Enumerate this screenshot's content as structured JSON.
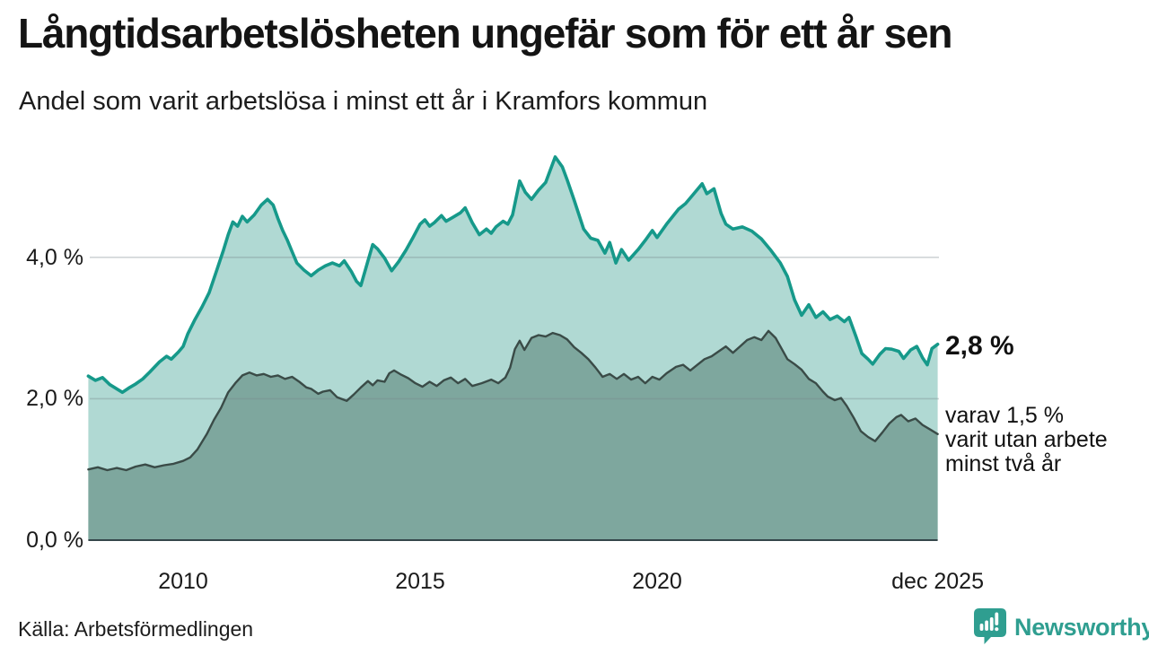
{
  "header": {
    "title": "Långtidsarbetslösheten ungefär som för ett år sen",
    "subtitle": "Andel som varit arbetslösa i minst ett år i Kramfors kommun"
  },
  "annotations": {
    "latest_total": "2,8 %",
    "latest_total_value": 2.8,
    "secondary": [
      "varav 1,5 %",
      "varit utan arbete",
      "minst två år"
    ],
    "secondary_value": 1.5
  },
  "footer": {
    "source": "Källa: Arbetsförmedlingen",
    "brand": "Newsworthy"
  },
  "colors": {
    "series1_line": "#16998a",
    "series1_fill": "#b0d9d3",
    "series2_line": "#3a4b47",
    "series2_fill": "#7ea79e",
    "gridline": "rgba(120,135,138,0.35)",
    "axis_baseline": "#35464a",
    "brand_teal": "#2f9e90",
    "text": "#1a1a1a"
  },
  "chart_data": {
    "type": "area",
    "title": "Långtidsarbetslösheten ungefär som för ett år sen",
    "subtitle": "Andel som varit arbetslösa i minst ett år i Kramfors kommun",
    "unit": "%",
    "x_domain": [
      2008.0,
      2025.92
    ],
    "ylim": [
      0,
      5.6
    ],
    "grid": true,
    "x_ticks": [
      {
        "value": 2010,
        "label": "2010"
      },
      {
        "value": 2015,
        "label": "2015"
      },
      {
        "value": 2020,
        "label": "2020"
      },
      {
        "value": 2025.92,
        "label": "dec 2025"
      }
    ],
    "y_ticks": [
      {
        "value": 0,
        "label": "0,0 %"
      },
      {
        "value": 2,
        "label": "2,0 %"
      },
      {
        "value": 4,
        "label": "4,0 %"
      }
    ],
    "series": [
      {
        "name": "Andel arbetslösa minst ett år",
        "latest_label": "2,8 %",
        "points": [
          [
            2008.0,
            2.32
          ],
          [
            2008.15,
            2.26
          ],
          [
            2008.3,
            2.3
          ],
          [
            2008.45,
            2.2
          ],
          [
            2008.6,
            2.14
          ],
          [
            2008.72,
            2.09
          ],
          [
            2008.85,
            2.15
          ],
          [
            2009.0,
            2.21
          ],
          [
            2009.15,
            2.28
          ],
          [
            2009.3,
            2.38
          ],
          [
            2009.5,
            2.52
          ],
          [
            2009.65,
            2.6
          ],
          [
            2009.75,
            2.56
          ],
          [
            2009.9,
            2.66
          ],
          [
            2010.0,
            2.74
          ],
          [
            2010.1,
            2.92
          ],
          [
            2010.25,
            3.12
          ],
          [
            2010.4,
            3.3
          ],
          [
            2010.55,
            3.5
          ],
          [
            2010.7,
            3.8
          ],
          [
            2010.85,
            4.1
          ],
          [
            2010.95,
            4.32
          ],
          [
            2011.05,
            4.5
          ],
          [
            2011.15,
            4.44
          ],
          [
            2011.25,
            4.58
          ],
          [
            2011.35,
            4.5
          ],
          [
            2011.5,
            4.6
          ],
          [
            2011.65,
            4.74
          ],
          [
            2011.78,
            4.82
          ],
          [
            2011.9,
            4.74
          ],
          [
            2012.0,
            4.55
          ],
          [
            2012.1,
            4.38
          ],
          [
            2012.2,
            4.24
          ],
          [
            2012.3,
            4.08
          ],
          [
            2012.4,
            3.92
          ],
          [
            2012.55,
            3.82
          ],
          [
            2012.7,
            3.74
          ],
          [
            2012.85,
            3.82
          ],
          [
            2013.0,
            3.88
          ],
          [
            2013.15,
            3.92
          ],
          [
            2013.3,
            3.88
          ],
          [
            2013.4,
            3.95
          ],
          [
            2013.55,
            3.8
          ],
          [
            2013.66,
            3.66
          ],
          [
            2013.75,
            3.6
          ],
          [
            2013.9,
            3.95
          ],
          [
            2014.0,
            4.18
          ],
          [
            2014.1,
            4.12
          ],
          [
            2014.25,
            3.99
          ],
          [
            2014.4,
            3.81
          ],
          [
            2014.55,
            3.94
          ],
          [
            2014.7,
            4.1
          ],
          [
            2014.85,
            4.28
          ],
          [
            2015.0,
            4.47
          ],
          [
            2015.1,
            4.53
          ],
          [
            2015.2,
            4.44
          ],
          [
            2015.3,
            4.49
          ],
          [
            2015.45,
            4.59
          ],
          [
            2015.55,
            4.51
          ],
          [
            2015.7,
            4.57
          ],
          [
            2015.85,
            4.63
          ],
          [
            2015.95,
            4.7
          ],
          [
            2016.1,
            4.49
          ],
          [
            2016.25,
            4.32
          ],
          [
            2016.4,
            4.4
          ],
          [
            2016.5,
            4.34
          ],
          [
            2016.6,
            4.43
          ],
          [
            2016.75,
            4.51
          ],
          [
            2016.85,
            4.47
          ],
          [
            2016.95,
            4.6
          ],
          [
            2017.1,
            5.08
          ],
          [
            2017.22,
            4.92
          ],
          [
            2017.35,
            4.82
          ],
          [
            2017.5,
            4.95
          ],
          [
            2017.65,
            5.06
          ],
          [
            2017.85,
            5.42
          ],
          [
            2018.0,
            5.28
          ],
          [
            2018.1,
            5.1
          ],
          [
            2018.25,
            4.81
          ],
          [
            2018.45,
            4.4
          ],
          [
            2018.6,
            4.27
          ],
          [
            2018.75,
            4.24
          ],
          [
            2018.9,
            4.06
          ],
          [
            2019.0,
            4.21
          ],
          [
            2019.13,
            3.92
          ],
          [
            2019.25,
            4.11
          ],
          [
            2019.4,
            3.96
          ],
          [
            2019.6,
            4.11
          ],
          [
            2019.75,
            4.24
          ],
          [
            2019.9,
            4.38
          ],
          [
            2020.0,
            4.28
          ],
          [
            2020.2,
            4.47
          ],
          [
            2020.45,
            4.68
          ],
          [
            2020.6,
            4.76
          ],
          [
            2020.75,
            4.88
          ],
          [
            2020.95,
            5.04
          ],
          [
            2021.05,
            4.9
          ],
          [
            2021.2,
            4.97
          ],
          [
            2021.35,
            4.62
          ],
          [
            2021.45,
            4.47
          ],
          [
            2021.6,
            4.4
          ],
          [
            2021.8,
            4.43
          ],
          [
            2022.0,
            4.37
          ],
          [
            2022.2,
            4.26
          ],
          [
            2022.4,
            4.1
          ],
          [
            2022.6,
            3.92
          ],
          [
            2022.75,
            3.73
          ],
          [
            2022.9,
            3.4
          ],
          [
            2023.05,
            3.18
          ],
          [
            2023.2,
            3.33
          ],
          [
            2023.35,
            3.15
          ],
          [
            2023.5,
            3.23
          ],
          [
            2023.65,
            3.12
          ],
          [
            2023.8,
            3.17
          ],
          [
            2023.95,
            3.09
          ],
          [
            2024.05,
            3.15
          ],
          [
            2024.2,
            2.87
          ],
          [
            2024.32,
            2.64
          ],
          [
            2024.45,
            2.56
          ],
          [
            2024.55,
            2.49
          ],
          [
            2024.7,
            2.63
          ],
          [
            2024.82,
            2.71
          ],
          [
            2024.95,
            2.7
          ],
          [
            2025.1,
            2.67
          ],
          [
            2025.2,
            2.57
          ],
          [
            2025.35,
            2.69
          ],
          [
            2025.48,
            2.74
          ],
          [
            2025.6,
            2.58
          ],
          [
            2025.7,
            2.48
          ],
          [
            2025.8,
            2.71
          ],
          [
            2025.92,
            2.77
          ]
        ]
      },
      {
        "name": "varav arbetslösa minst två år",
        "latest_label": "1,5 %",
        "points": [
          [
            2008.0,
            1.0
          ],
          [
            2008.2,
            1.03
          ],
          [
            2008.4,
            0.99
          ],
          [
            2008.6,
            1.02
          ],
          [
            2008.8,
            0.99
          ],
          [
            2009.0,
            1.04
          ],
          [
            2009.2,
            1.07
          ],
          [
            2009.4,
            1.03
          ],
          [
            2009.6,
            1.06
          ],
          [
            2009.8,
            1.08
          ],
          [
            2010.0,
            1.12
          ],
          [
            2010.15,
            1.17
          ],
          [
            2010.3,
            1.28
          ],
          [
            2010.5,
            1.5
          ],
          [
            2010.65,
            1.7
          ],
          [
            2010.8,
            1.87
          ],
          [
            2010.95,
            2.09
          ],
          [
            2011.1,
            2.22
          ],
          [
            2011.25,
            2.33
          ],
          [
            2011.4,
            2.37
          ],
          [
            2011.55,
            2.33
          ],
          [
            2011.7,
            2.35
          ],
          [
            2011.85,
            2.31
          ],
          [
            2012.0,
            2.33
          ],
          [
            2012.15,
            2.28
          ],
          [
            2012.3,
            2.31
          ],
          [
            2012.45,
            2.24
          ],
          [
            2012.6,
            2.16
          ],
          [
            2012.7,
            2.14
          ],
          [
            2012.85,
            2.07
          ],
          [
            2012.95,
            2.1
          ],
          [
            2013.1,
            2.12
          ],
          [
            2013.25,
            2.02
          ],
          [
            2013.45,
            1.97
          ],
          [
            2013.6,
            2.06
          ],
          [
            2013.75,
            2.16
          ],
          [
            2013.9,
            2.25
          ],
          [
            2014.0,
            2.19
          ],
          [
            2014.1,
            2.26
          ],
          [
            2014.25,
            2.24
          ],
          [
            2014.35,
            2.36
          ],
          [
            2014.45,
            2.4
          ],
          [
            2014.6,
            2.34
          ],
          [
            2014.75,
            2.29
          ],
          [
            2014.9,
            2.22
          ],
          [
            2015.05,
            2.17
          ],
          [
            2015.2,
            2.24
          ],
          [
            2015.35,
            2.18
          ],
          [
            2015.5,
            2.26
          ],
          [
            2015.65,
            2.3
          ],
          [
            2015.8,
            2.22
          ],
          [
            2015.95,
            2.28
          ],
          [
            2016.1,
            2.18
          ],
          [
            2016.3,
            2.22
          ],
          [
            2016.5,
            2.27
          ],
          [
            2016.65,
            2.22
          ],
          [
            2016.8,
            2.3
          ],
          [
            2016.9,
            2.44
          ],
          [
            2017.0,
            2.7
          ],
          [
            2017.1,
            2.82
          ],
          [
            2017.2,
            2.69
          ],
          [
            2017.35,
            2.86
          ],
          [
            2017.5,
            2.9
          ],
          [
            2017.65,
            2.88
          ],
          [
            2017.8,
            2.93
          ],
          [
            2017.95,
            2.9
          ],
          [
            2018.1,
            2.84
          ],
          [
            2018.25,
            2.73
          ],
          [
            2018.4,
            2.65
          ],
          [
            2018.55,
            2.56
          ],
          [
            2018.7,
            2.44
          ],
          [
            2018.85,
            2.31
          ],
          [
            2019.0,
            2.35
          ],
          [
            2019.15,
            2.28
          ],
          [
            2019.3,
            2.35
          ],
          [
            2019.45,
            2.27
          ],
          [
            2019.6,
            2.31
          ],
          [
            2019.75,
            2.22
          ],
          [
            2019.9,
            2.31
          ],
          [
            2020.05,
            2.27
          ],
          [
            2020.2,
            2.36
          ],
          [
            2020.4,
            2.45
          ],
          [
            2020.55,
            2.48
          ],
          [
            2020.7,
            2.4
          ],
          [
            2020.85,
            2.48
          ],
          [
            2021.0,
            2.56
          ],
          [
            2021.15,
            2.6
          ],
          [
            2021.3,
            2.67
          ],
          [
            2021.45,
            2.74
          ],
          [
            2021.6,
            2.65
          ],
          [
            2021.75,
            2.74
          ],
          [
            2021.9,
            2.83
          ],
          [
            2022.05,
            2.87
          ],
          [
            2022.2,
            2.83
          ],
          [
            2022.35,
            2.96
          ],
          [
            2022.5,
            2.86
          ],
          [
            2022.6,
            2.74
          ],
          [
            2022.75,
            2.56
          ],
          [
            2022.9,
            2.49
          ],
          [
            2023.05,
            2.41
          ],
          [
            2023.2,
            2.28
          ],
          [
            2023.35,
            2.22
          ],
          [
            2023.5,
            2.1
          ],
          [
            2023.6,
            2.03
          ],
          [
            2023.75,
            1.98
          ],
          [
            2023.88,
            2.01
          ],
          [
            2024.0,
            1.9
          ],
          [
            2024.15,
            1.73
          ],
          [
            2024.3,
            1.54
          ],
          [
            2024.45,
            1.46
          ],
          [
            2024.6,
            1.4
          ],
          [
            2024.75,
            1.52
          ],
          [
            2024.9,
            1.65
          ],
          [
            2025.05,
            1.74
          ],
          [
            2025.15,
            1.77
          ],
          [
            2025.3,
            1.68
          ],
          [
            2025.45,
            1.72
          ],
          [
            2025.6,
            1.63
          ],
          [
            2025.75,
            1.57
          ],
          [
            2025.92,
            1.5
          ]
        ]
      }
    ]
  }
}
